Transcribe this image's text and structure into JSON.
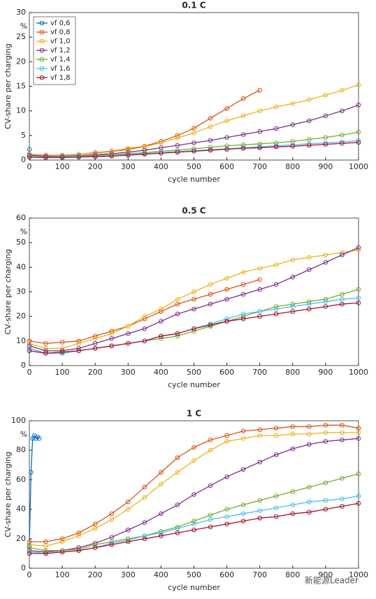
{
  "chart_data": [
    {
      "type": "line",
      "title": "0.1 C",
      "xlabel": "cycle number",
      "ylabel": "CV-share per charging",
      "annotation": "%",
      "legend": "upper left",
      "x": [
        0,
        50,
        100,
        150,
        200,
        250,
        300,
        350,
        400,
        450,
        500,
        550,
        600,
        650,
        700,
        750,
        800,
        850,
        900,
        950,
        1000
      ],
      "xlim": [
        0,
        1000
      ],
      "xticks": [
        0,
        100,
        200,
        300,
        400,
        500,
        600,
        700,
        800,
        900,
        1000
      ],
      "ylim": [
        0,
        30
      ],
      "yticks": [
        0,
        5,
        10,
        15,
        20,
        25,
        30
      ],
      "series": [
        {
          "name": "vf 0,6",
          "color": "#0072bd",
          "x": [
            0
          ],
          "values": [
            2.2
          ]
        },
        {
          "name": "vf 0,8",
          "color": "#d95319",
          "values": [
            1.2,
            1.0,
            1.0,
            1.2,
            1.5,
            1.8,
            2.3,
            2.8,
            3.8,
            5,
            6.5,
            8.5,
            10.5,
            12.5,
            14.2,
            null,
            null,
            null,
            null,
            null,
            null
          ]
        },
        {
          "name": "vf 1,0",
          "color": "#edb120",
          "values": [
            1.2,
            1.0,
            1.0,
            1.2,
            1.4,
            1.7,
            2.1,
            2.7,
            3.5,
            4.5,
            5.5,
            6.8,
            8,
            9,
            10,
            10.8,
            11.5,
            12.3,
            13.2,
            14.2,
            15.3
          ]
        },
        {
          "name": "vf 1,2",
          "color": "#7e2f8e",
          "values": [
            1,
            0.8,
            0.8,
            0.9,
            1.1,
            1.3,
            1.6,
            2,
            2.5,
            3,
            3.5,
            4,
            4.6,
            5.2,
            5.8,
            6.4,
            7.2,
            8,
            9,
            10,
            11.2
          ]
        },
        {
          "name": "vf 1,4",
          "color": "#77ac30",
          "values": [
            0.8,
            0.6,
            0.7,
            0.8,
            0.9,
            1.1,
            1.3,
            1.5,
            1.8,
            2,
            2.3,
            2.6,
            2.9,
            3.1,
            3.3,
            3.5,
            3.8,
            4.2,
            4.6,
            5.1,
            5.7
          ]
        },
        {
          "name": "vf 1,6",
          "color": "#4dbeee",
          "values": [
            0.7,
            0.6,
            0.6,
            0.7,
            0.8,
            0.9,
            1.1,
            1.3,
            1.5,
            1.7,
            1.9,
            2.1,
            2.3,
            2.5,
            2.7,
            2.9,
            3.1,
            3.3,
            3.5,
            3.7,
            4.0
          ]
        },
        {
          "name": "vf 1,8",
          "color": "#a2142f",
          "values": [
            0.6,
            0.5,
            0.5,
            0.6,
            0.7,
            0.8,
            1.0,
            1.2,
            1.4,
            1.6,
            1.8,
            2.0,
            2.2,
            2.4,
            2.5,
            2.7,
            2.8,
            3.0,
            3.2,
            3.4,
            3.6
          ]
        }
      ]
    },
    {
      "type": "line",
      "title": "0.5 C",
      "xlabel": "cycle number",
      "ylabel": "CV-share per charging",
      "annotation": "%",
      "x": [
        0,
        50,
        100,
        150,
        200,
        250,
        300,
        350,
        400,
        450,
        500,
        550,
        600,
        650,
        700,
        750,
        800,
        850,
        900,
        950,
        1000
      ],
      "xlim": [
        0,
        1000
      ],
      "xticks": [
        0,
        100,
        200,
        300,
        400,
        500,
        600,
        700,
        800,
        900,
        1000
      ],
      "ylim": [
        0,
        60
      ],
      "yticks": [
        0,
        10,
        20,
        30,
        40,
        50,
        60
      ],
      "series": [
        {
          "color": "#d95319",
          "values": [
            10,
            9,
            9.5,
            10,
            12,
            14,
            16,
            19,
            22,
            25,
            27,
            29,
            31,
            33,
            35,
            null,
            null,
            null,
            null,
            null,
            null
          ]
        },
        {
          "color": "#edb120",
          "values": [
            9,
            7,
            7,
            9,
            11,
            13,
            16,
            20,
            23,
            27,
            30,
            33,
            35.5,
            38,
            39.5,
            41,
            43,
            44,
            45,
            46,
            47
          ]
        },
        {
          "color": "#7e2f8e",
          "values": [
            8,
            6,
            6,
            7,
            9,
            11,
            13,
            15,
            18,
            21,
            23,
            25,
            27,
            29,
            31,
            33,
            36,
            39,
            42,
            45,
            48
          ]
        },
        {
          "color": "#77ac30",
          "values": [
            7,
            5,
            5,
            6,
            7,
            8,
            9,
            10,
            11,
            12,
            14,
            16,
            18,
            20,
            22,
            24,
            25,
            26,
            27,
            29,
            31
          ]
        },
        {
          "color": "#4dbeee",
          "values": [
            7,
            5,
            5,
            6,
            7,
            8,
            9,
            10,
            12,
            13,
            15,
            17,
            19,
            21,
            22,
            23,
            24,
            25,
            26,
            27,
            27.5
          ]
        },
        {
          "color": "#a2142f",
          "values": [
            6,
            5,
            5.5,
            6,
            7,
            8,
            9,
            10,
            12,
            13,
            15,
            16.5,
            18,
            19,
            20,
            21,
            22,
            23,
            24,
            25,
            25.5
          ]
        }
      ]
    },
    {
      "type": "line",
      "title": "1 C",
      "xlabel": "cycle number",
      "ylabel": "CV-share per charging",
      "annotation": "%",
      "watermark": "新能源Leader",
      "x": [
        0,
        50,
        100,
        150,
        200,
        250,
        300,
        350,
        400,
        450,
        500,
        550,
        600,
        650,
        700,
        750,
        800,
        850,
        900,
        950,
        1000
      ],
      "xlim": [
        0,
        1000
      ],
      "xticks": [
        0,
        100,
        200,
        300,
        400,
        500,
        600,
        700,
        800,
        900,
        1000
      ],
      "ylim": [
        0,
        100
      ],
      "yticks": [
        0,
        20,
        40,
        60,
        80,
        100
      ],
      "series": [
        {
          "color": "#0072bd",
          "x": [
            0,
            5,
            10,
            15,
            20,
            25,
            30
          ],
          "values": [
            15,
            65,
            88,
            90,
            88,
            89,
            88
          ]
        },
        {
          "color": "#d95319",
          "values": [
            18,
            18,
            20,
            24,
            30,
            37,
            45,
            55,
            65,
            75,
            82,
            87,
            90,
            93,
            94,
            95,
            96,
            96,
            97,
            97,
            95
          ]
        },
        {
          "color": "#edb120",
          "values": [
            16,
            15,
            18,
            22,
            27,
            33,
            40,
            48,
            57,
            65,
            73,
            80,
            86,
            88,
            90,
            90,
            91,
            91,
            92,
            92,
            92
          ]
        },
        {
          "color": "#7e2f8e",
          "values": [
            12,
            11,
            12,
            14,
            17,
            21,
            26,
            31,
            37,
            43,
            50,
            56,
            62,
            67,
            72,
            77,
            81,
            84,
            86,
            87,
            88
          ]
        },
        {
          "color": "#77ac30",
          "values": [
            14,
            12,
            12,
            13,
            16,
            18,
            20,
            22,
            25,
            28,
            32,
            36,
            40,
            43,
            46,
            49,
            52,
            55,
            58,
            61,
            64
          ]
        },
        {
          "color": "#4dbeee",
          "values": [
            11,
            10,
            11,
            12,
            14,
            17,
            19,
            22,
            24,
            27,
            30,
            33,
            35,
            37,
            39,
            41,
            43,
            45,
            46,
            47,
            49
          ]
        },
        {
          "color": "#a2142f",
          "values": [
            10,
            10,
            11,
            12,
            14,
            16,
            18,
            20,
            22,
            24,
            26,
            28,
            30,
            32,
            34,
            35,
            37,
            38,
            40,
            42,
            44
          ]
        }
      ]
    }
  ]
}
